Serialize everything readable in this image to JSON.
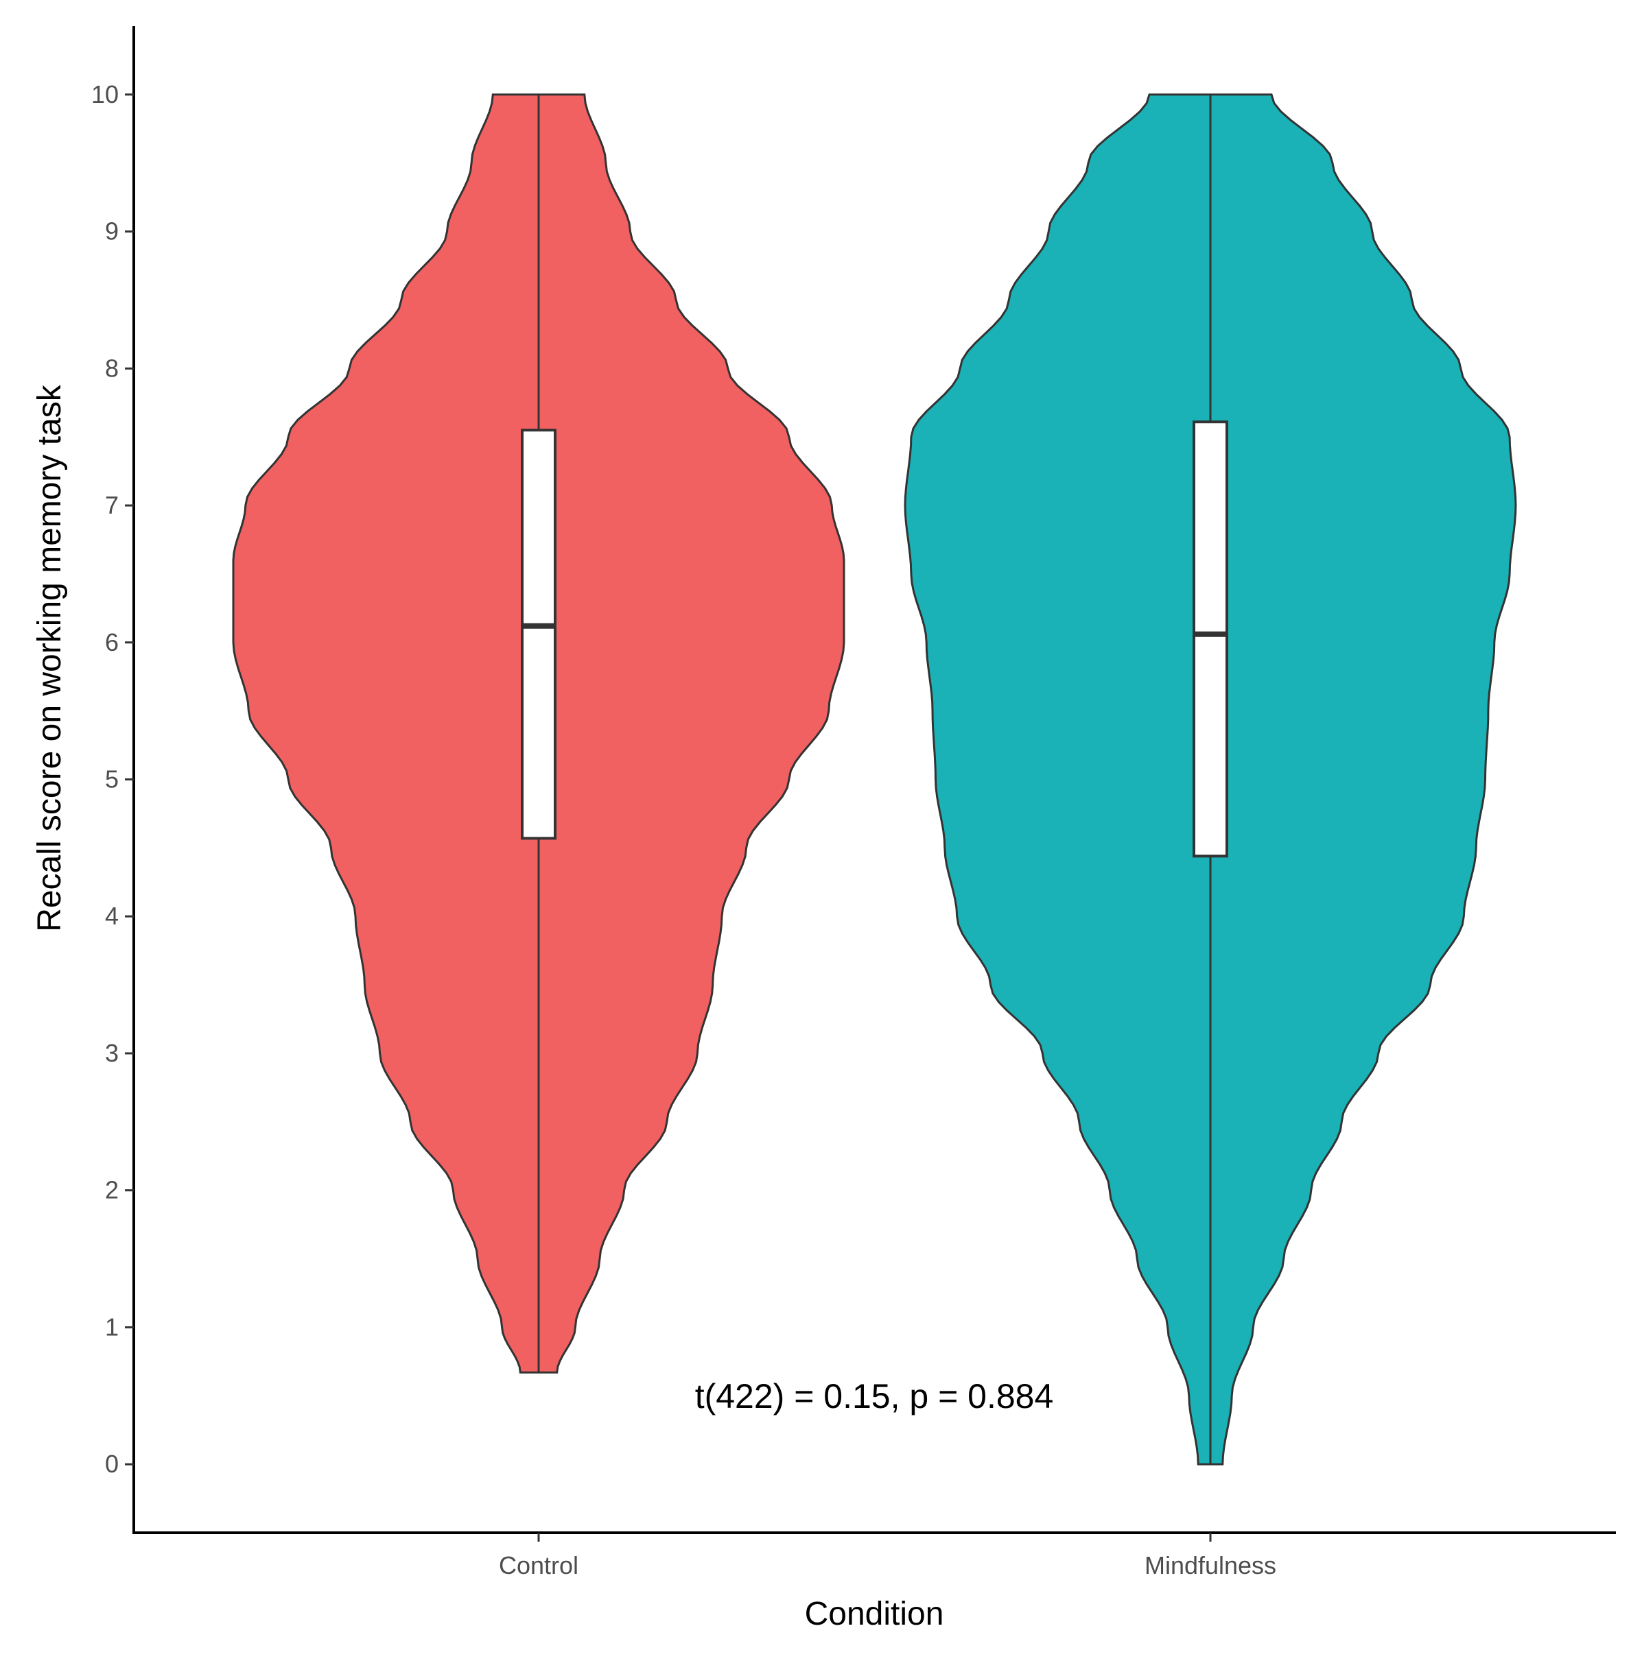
{
  "chart_data": {
    "type": "violin",
    "xlabel": "Condition",
    "ylabel": "Recall score on working memory task",
    "ylim": [
      -0.5,
      10.5
    ],
    "yticks": [
      0,
      1,
      2,
      3,
      4,
      5,
      6,
      7,
      8,
      9,
      10
    ],
    "categories": [
      "Control",
      "Mindfulness"
    ],
    "grid": false,
    "legend": "none",
    "annotation": "t(422) = 0.15, p = 0.884",
    "series": [
      {
        "name": "Control",
        "color": "#F26161",
        "min": 0.67,
        "max": 10,
        "box": {
          "q1": 4.57,
          "median": 6.12,
          "q3": 7.55
        },
        "density": [
          [
            0.67,
            0.06
          ],
          [
            1,
            0.12
          ],
          [
            1.5,
            0.2
          ],
          [
            2,
            0.28
          ],
          [
            2.5,
            0.42
          ],
          [
            3,
            0.52
          ],
          [
            3.5,
            0.57
          ],
          [
            4,
            0.6
          ],
          [
            4.5,
            0.68
          ],
          [
            5,
            0.82
          ],
          [
            5.5,
            0.95
          ],
          [
            6,
            1.0
          ],
          [
            6.6,
            1.0
          ],
          [
            7,
            0.96
          ],
          [
            7.5,
            0.82
          ],
          [
            8,
            0.62
          ],
          [
            8.5,
            0.45
          ],
          [
            9,
            0.3
          ],
          [
            9.5,
            0.22
          ],
          [
            10,
            0.15
          ]
        ]
      },
      {
        "name": "Mindfulness",
        "color": "#1AB2B6",
        "min": 0,
        "max": 10,
        "box": {
          "q1": 4.44,
          "median": 6.06,
          "q3": 7.61
        },
        "density": [
          [
            0,
            0.04
          ],
          [
            0.5,
            0.07
          ],
          [
            1,
            0.14
          ],
          [
            1.5,
            0.24
          ],
          [
            2,
            0.33
          ],
          [
            2.5,
            0.43
          ],
          [
            3,
            0.55
          ],
          [
            3.5,
            0.72
          ],
          [
            4,
            0.83
          ],
          [
            4.5,
            0.87
          ],
          [
            5,
            0.9
          ],
          [
            5.5,
            0.91
          ],
          [
            6,
            0.93
          ],
          [
            6.5,
            0.98
          ],
          [
            7,
            1.0
          ],
          [
            7.5,
            0.98
          ],
          [
            8,
            0.82
          ],
          [
            8.5,
            0.66
          ],
          [
            9,
            0.53
          ],
          [
            9.5,
            0.4
          ],
          [
            10,
            0.2
          ]
        ]
      }
    ]
  }
}
